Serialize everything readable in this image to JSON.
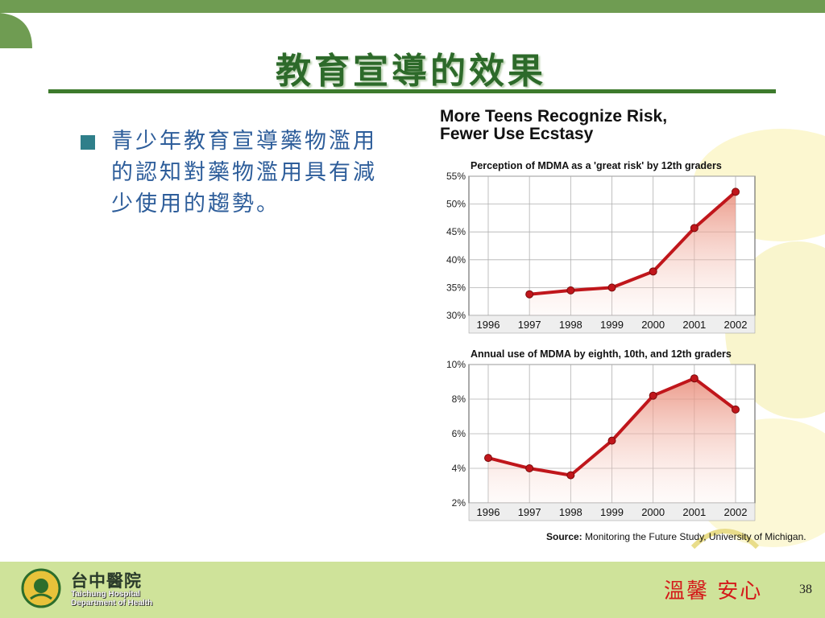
{
  "slide": {
    "title": "教育宣導的效果",
    "bullet_text": "青少年教育宣導藥物濫用的認知對藥物濫用具有減少使用的趨勢。",
    "page_number": "38",
    "slogan_1": "溫馨",
    "slogan_2": "安心",
    "org_name": "台中醫院",
    "org_sub_1": "Taichung Hospital",
    "org_sub_2": "Department of Health"
  },
  "chart_heading": {
    "line1": "More Teens Recognize Risk,",
    "line2": "Fewer Use Ecstasy"
  },
  "source": {
    "label": "Source:",
    "text": "Monitoring the Future Study, University of Michigan."
  },
  "colors": {
    "title": "#2d6a2a",
    "line": "#c0161b",
    "bullet_text": "#2d5d9a",
    "slogan": "#d41a1a"
  },
  "chart_data": [
    {
      "type": "line",
      "title": "Perception of MDMA as a 'great risk' by 12th graders",
      "x": [
        "1996",
        "1997",
        "1998",
        "1999",
        "2000",
        "2001",
        "2002"
      ],
      "series": [
        {
          "values": [
            null,
            33.8,
            34.5,
            35.0,
            37.9,
            45.7,
            52.2
          ]
        }
      ],
      "yticks": [
        "55%",
        "50%",
        "45%",
        "40%",
        "35%",
        "30%"
      ],
      "ylim": [
        30,
        55
      ],
      "grid": true,
      "area_fill": true
    },
    {
      "type": "line",
      "title": "Annual use of MDMA by eighth, 10th, and 12th graders",
      "x": [
        "1996",
        "1997",
        "1998",
        "1999",
        "2000",
        "2001",
        "2002"
      ],
      "series": [
        {
          "values": [
            4.6,
            4.0,
            3.6,
            5.6,
            8.2,
            9.2,
            7.4
          ]
        }
      ],
      "yticks": [
        "10%",
        "8%",
        "6%",
        "4%",
        "2%"
      ],
      "ylim": [
        2,
        10
      ],
      "grid": true,
      "area_fill": true
    }
  ]
}
